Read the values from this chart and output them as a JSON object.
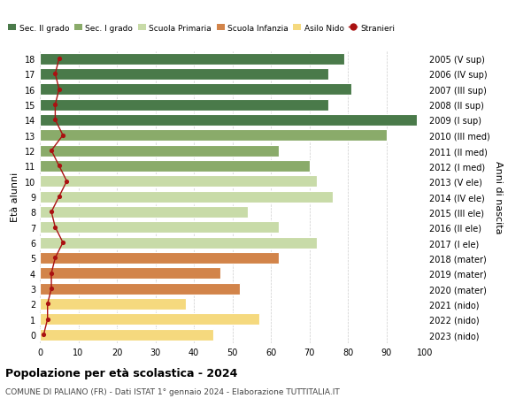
{
  "ages": [
    0,
    1,
    2,
    3,
    4,
    5,
    6,
    7,
    8,
    9,
    10,
    11,
    12,
    13,
    14,
    15,
    16,
    17,
    18
  ],
  "birth_years": [
    "2023 (nido)",
    "2022 (nido)",
    "2021 (nido)",
    "2020 (mater)",
    "2019 (mater)",
    "2018 (mater)",
    "2017 (I ele)",
    "2016 (II ele)",
    "2015 (III ele)",
    "2014 (IV ele)",
    "2013 (V ele)",
    "2012 (I med)",
    "2011 (II med)",
    "2010 (III med)",
    "2009 (I sup)",
    "2008 (II sup)",
    "2007 (III sup)",
    "2006 (IV sup)",
    "2005 (V sup)"
  ],
  "bar_values": [
    45,
    57,
    38,
    52,
    47,
    62,
    72,
    62,
    54,
    76,
    72,
    70,
    62,
    90,
    98,
    75,
    81,
    75,
    79
  ],
  "stranieri_values": [
    1,
    2,
    2,
    3,
    3,
    4,
    6,
    4,
    3,
    5,
    7,
    5,
    3,
    6,
    4,
    4,
    5,
    4,
    5
  ],
  "bar_colors": {
    "nido": "#f5d97e",
    "mater": "#d2844a",
    "ele": "#c8dba8",
    "med": "#8aab6a",
    "sup": "#4a7a4a"
  },
  "stranieri_color": "#aa1111",
  "legend_labels": [
    "Sec. II grado",
    "Sec. I grado",
    "Scuola Primaria",
    "Scuola Infanzia",
    "Asilo Nido",
    "Stranieri"
  ],
  "legend_colors": [
    "#4a7a4a",
    "#8aab6a",
    "#c8dba8",
    "#d2844a",
    "#f5d97e",
    "#aa1111"
  ],
  "ylabel_left": "Età alunni",
  "ylabel_right": "Anni di nascita",
  "xlim": [
    0,
    100
  ],
  "title_bold": "Popolazione per età scolastica - 2024",
  "subtitle": "COMUNE DI PALIANO (FR) - Dati ISTAT 1° gennaio 2024 - Elaborazione TUTTITALIA.IT",
  "bg_color": "#ffffff",
  "grid_color": "#cccccc",
  "bar_height": 0.75
}
